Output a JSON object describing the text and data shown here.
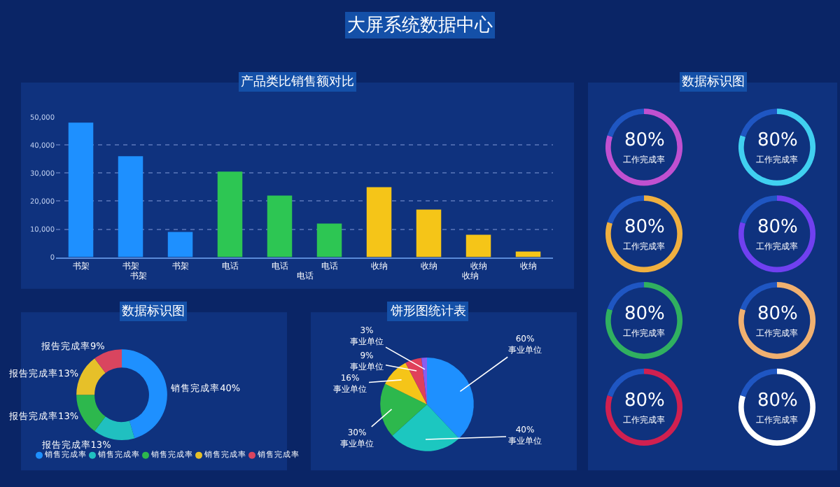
{
  "chart_data": [
    {
      "type": "other",
      "title": "大屏系统数据中心"
    },
    {
      "type": "bar",
      "title": "产品类比销售额对比",
      "categories": [
        "书架",
        "书架",
        "书架",
        "电话",
        "电话",
        "电话",
        "收纳",
        "收纳",
        "收纳",
        "收纳"
      ],
      "values": [
        48000,
        36000,
        9000,
        30500,
        22000,
        12000,
        25000,
        17000,
        8000,
        2000
      ],
      "colors": [
        "#1e90ff",
        "#1e90ff",
        "#1e90ff",
        "#2dc653",
        "#2dc653",
        "#2dc653",
        "#f5c518",
        "#f5c518",
        "#f5c518",
        "#f5c518"
      ],
      "annotations": [
        "书架",
        "电话",
        "收纳"
      ],
      "ylim": [
        0,
        50000
      ],
      "yticks": [
        0,
        {
          "value": 10000,
          "label": "10,000"
        },
        {
          "value": 20000,
          "label": "20,000"
        },
        {
          "value": 30000,
          "label": "30,000"
        },
        {
          "value": 40000,
          "label": "40,000"
        },
        {
          "value": 50000,
          "label": "50,000"
        }
      ],
      "grid": "y"
    },
    {
      "type": "donut",
      "title": "数据标识图",
      "categories": [
        null,
        null
      ],
      "values": [
        80,
        20
      ],
      "colors": [
        "#c050d0",
        "#1f56c2"
      ],
      "annotations": [
        "80%",
        "工作完成率"
      ]
    },
    {
      "type": "donut",
      "categories": [
        null,
        null
      ],
      "values": [
        80,
        20
      ],
      "colors": [
        "#40d0f0",
        "#1f56c2"
      ],
      "annotations": [
        "80%",
        "工作完成率"
      ]
    },
    {
      "type": "donut",
      "categories": [
        null,
        null
      ],
      "values": [
        80,
        20
      ],
      "colors": [
        "#f0b040",
        "#1f56c2"
      ],
      "annotations": [
        "80%",
        "工作完成率"
      ]
    },
    {
      "type": "donut",
      "categories": [
        null,
        null
      ],
      "values": [
        80,
        20
      ],
      "colors": [
        "#7040f0",
        "#1f56c2"
      ],
      "annotations": [
        "80%",
        "工作完成率"
      ]
    },
    {
      "type": "donut",
      "categories": [
        null,
        null
      ],
      "values": [
        80,
        20
      ],
      "colors": [
        "#30b060",
        "#1f56c2"
      ],
      "annotations": [
        "80%",
        "工作完成率"
      ]
    },
    {
      "type": "donut",
      "categories": [
        null,
        null
      ],
      "values": [
        80,
        20
      ],
      "colors": [
        "#f0b070",
        "#1f56c2"
      ],
      "annotations": [
        "80%",
        "工作完成率"
      ]
    },
    {
      "type": "donut",
      "categories": [
        null,
        null
      ],
      "values": [
        80,
        20
      ],
      "colors": [
        "#d02050",
        "#1f56c2"
      ],
      "annotations": [
        "80%",
        "工作完成率"
      ]
    },
    {
      "type": "donut",
      "categories": [
        null,
        null
      ],
      "values": [
        80,
        20
      ],
      "colors": [
        "#ffffff",
        "#1f56c2"
      ],
      "annotations": [
        "80%",
        "工作完成率"
      ]
    },
    {
      "type": "donut",
      "title": "数据标识图",
      "categories": [
        "销售完成率",
        "销售完成率",
        "销售完成率",
        "销售完成率",
        "销售完成率"
      ],
      "values": [
        40,
        13,
        13,
        13,
        9
      ],
      "colors": [
        "#1e90ff",
        "#20c0c0",
        "#2db84d",
        "#e6c029",
        "#d9455f"
      ],
      "value_labels": [
        "销售完成率40%",
        "报告完成率13%",
        "报告完成率13%",
        "报告完成率13%",
        "报告完成率9%"
      ],
      "legend": "bottom"
    },
    {
      "type": "pie",
      "title": "饼形图统计表",
      "categories": [
        "事业单位",
        "事业单位",
        "事业单位",
        "事业单位",
        "事业单位",
        "事业单位"
      ],
      "values": [
        60,
        40,
        30,
        16,
        9,
        3
      ],
      "colors": [
        "#1e90ff",
        "#1cc7c0",
        "#2db84d",
        "#f5c518",
        "#e0405a",
        "#8a5cf0"
      ],
      "value_labels": [
        "60%",
        "40%",
        "30%",
        "16%",
        "9%",
        "3%"
      ]
    }
  ]
}
